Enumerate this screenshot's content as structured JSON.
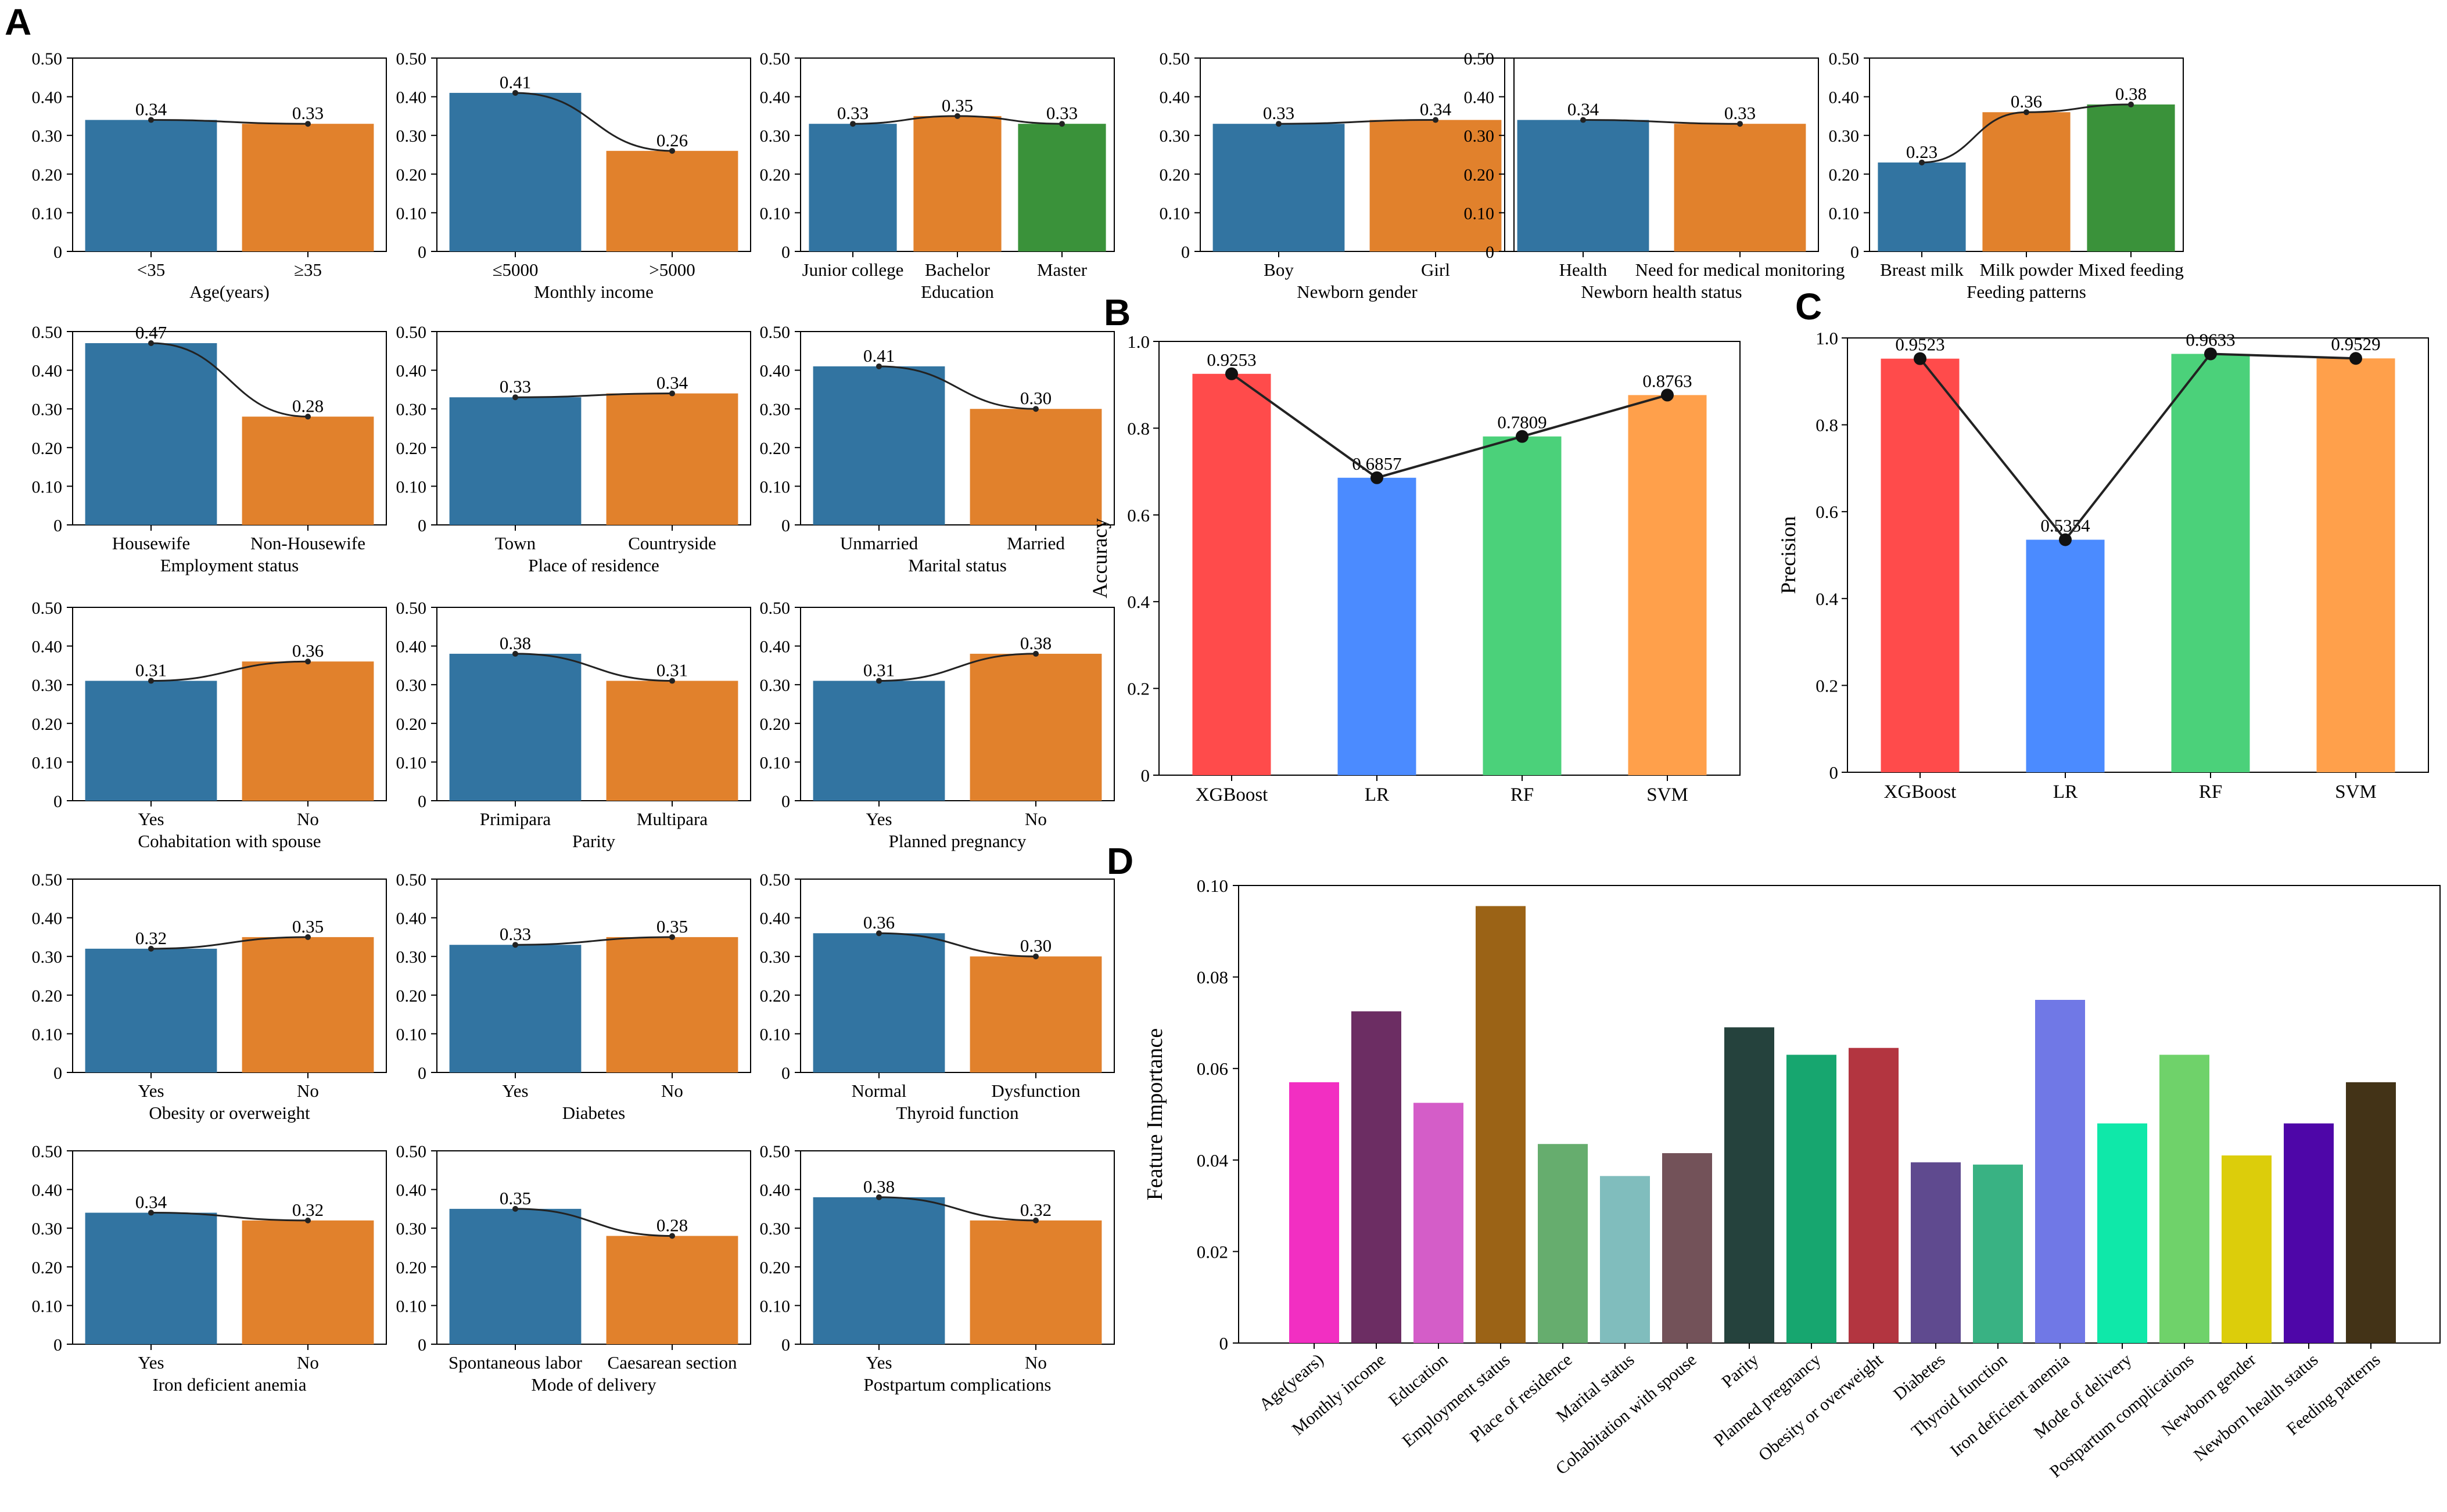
{
  "panels": {
    "A": "A",
    "B": "B",
    "C": "C",
    "D": "D"
  },
  "colors": {
    "blue": "#3274a1",
    "orange": "#e1812c",
    "green": "#3a923a",
    "line": "#222222"
  },
  "chart_data": [
    {
      "panel": "A",
      "type": "bar",
      "title": "",
      "xlabel": "Age(years)",
      "ylabel": "",
      "ylim": [
        0,
        0.5
      ],
      "yticks": [
        "0",
        "0.10",
        "0.20",
        "0.30",
        "0.40",
        "0.50"
      ],
      "categories": [
        "<35",
        "≥35"
      ],
      "values": [
        0.34,
        0.33
      ],
      "labels": [
        "0.34",
        "0.33"
      ]
    },
    {
      "panel": "A",
      "type": "bar",
      "title": "",
      "xlabel": "Monthly income",
      "ylabel": "",
      "ylim": [
        0,
        0.5
      ],
      "yticks": [
        "0",
        "0.10",
        "0.20",
        "0.30",
        "0.40",
        "0.50"
      ],
      "categories": [
        "≤5000",
        ">5000"
      ],
      "values": [
        0.41,
        0.26
      ],
      "labels": [
        "0.41",
        "0.26"
      ]
    },
    {
      "panel": "A",
      "type": "bar",
      "title": "",
      "xlabel": "Education",
      "ylabel": "",
      "ylim": [
        0,
        0.5
      ],
      "yticks": [
        "0",
        "0.10",
        "0.20",
        "0.30",
        "0.40",
        "0.50"
      ],
      "categories": [
        "Junior college",
        "Bachelor",
        "Master"
      ],
      "values": [
        0.33,
        0.35,
        0.33
      ],
      "labels": [
        "0.33",
        "0.35",
        "0.33"
      ]
    },
    {
      "panel": "A",
      "type": "bar",
      "title": "",
      "xlabel": "Newborn gender",
      "ylabel": "",
      "ylim": [
        0,
        0.5
      ],
      "yticks": [
        "0",
        "0.10",
        "0.20",
        "0.30",
        "0.40",
        "0.50"
      ],
      "categories": [
        "Boy",
        "Girl"
      ],
      "values": [
        0.33,
        0.34
      ],
      "labels": [
        "0.33",
        "0.34"
      ]
    },
    {
      "panel": "A",
      "type": "bar",
      "title": "",
      "xlabel": "Newborn health status",
      "ylabel": "",
      "ylim": [
        0,
        0.5
      ],
      "yticks": [
        "0",
        "0.10",
        "0.20",
        "0.30",
        "0.40",
        "0.50"
      ],
      "categories": [
        "Health",
        "Need for medical monitoring"
      ],
      "values": [
        0.34,
        0.33
      ],
      "labels": [
        "0.34",
        "0.33"
      ]
    },
    {
      "panel": "A",
      "type": "bar",
      "title": "",
      "xlabel": "Feeding patterns",
      "ylabel": "",
      "ylim": [
        0,
        0.5
      ],
      "yticks": [
        "0",
        "0.10",
        "0.20",
        "0.30",
        "0.40",
        "0.50"
      ],
      "categories": [
        "Breast milk",
        "Milk powder",
        "Mixed feeding"
      ],
      "values": [
        0.23,
        0.36,
        0.38
      ],
      "labels": [
        "0.23",
        "0.36",
        "0.38"
      ]
    },
    {
      "panel": "A",
      "type": "bar",
      "title": "",
      "xlabel": "Employment status",
      "ylabel": "",
      "ylim": [
        0,
        0.5
      ],
      "yticks": [
        "0",
        "0.10",
        "0.20",
        "0.30",
        "0.40",
        "0.50"
      ],
      "categories": [
        "Housewife",
        "Non-Housewife"
      ],
      "values": [
        0.47,
        0.28
      ],
      "labels": [
        "0.47",
        "0.28"
      ]
    },
    {
      "panel": "A",
      "type": "bar",
      "title": "",
      "xlabel": "Place of residence",
      "ylabel": "",
      "ylim": [
        0,
        0.5
      ],
      "yticks": [
        "0",
        "0.10",
        "0.20",
        "0.30",
        "0.40",
        "0.50"
      ],
      "categories": [
        "Town",
        "Countryside"
      ],
      "values": [
        0.33,
        0.34
      ],
      "labels": [
        "0.33",
        "0.34"
      ]
    },
    {
      "panel": "A",
      "type": "bar",
      "title": "",
      "xlabel": "Marital status",
      "ylabel": "",
      "ylim": [
        0,
        0.5
      ],
      "yticks": [
        "0",
        "0.10",
        "0.20",
        "0.30",
        "0.40",
        "0.50"
      ],
      "categories": [
        "Unmarried",
        "Married"
      ],
      "values": [
        0.41,
        0.3
      ],
      "labels": [
        "0.41",
        "0.30"
      ]
    },
    {
      "panel": "A",
      "type": "bar",
      "title": "",
      "xlabel": "Cohabitation with spouse",
      "ylabel": "",
      "ylim": [
        0,
        0.5
      ],
      "yticks": [
        "0",
        "0.10",
        "0.20",
        "0.30",
        "0.40",
        "0.50"
      ],
      "categories": [
        "Yes",
        "No"
      ],
      "values": [
        0.31,
        0.36
      ],
      "labels": [
        "0.31",
        "0.36"
      ]
    },
    {
      "panel": "A",
      "type": "bar",
      "title": "",
      "xlabel": "Parity",
      "ylabel": "",
      "ylim": [
        0,
        0.5
      ],
      "yticks": [
        "0",
        "0.10",
        "0.20",
        "0.30",
        "0.40",
        "0.50"
      ],
      "categories": [
        "Primipara",
        "Multipara"
      ],
      "values": [
        0.38,
        0.31
      ],
      "labels": [
        "0.38",
        "0.31"
      ]
    },
    {
      "panel": "A",
      "type": "bar",
      "title": "",
      "xlabel": "Planned pregnancy",
      "ylabel": "",
      "ylim": [
        0,
        0.5
      ],
      "yticks": [
        "0",
        "0.10",
        "0.20",
        "0.30",
        "0.40",
        "0.50"
      ],
      "categories": [
        "Yes",
        "No"
      ],
      "values": [
        0.31,
        0.38
      ],
      "labels": [
        "0.31",
        "0.38"
      ]
    },
    {
      "panel": "A",
      "type": "bar",
      "title": "",
      "xlabel": "Obesity or overweight",
      "ylabel": "",
      "ylim": [
        0,
        0.5
      ],
      "yticks": [
        "0",
        "0.10",
        "0.20",
        "0.30",
        "0.40",
        "0.50"
      ],
      "categories": [
        "Yes",
        "No"
      ],
      "values": [
        0.32,
        0.35
      ],
      "labels": [
        "0.32",
        "0.35"
      ]
    },
    {
      "panel": "A",
      "type": "bar",
      "title": "",
      "xlabel": "Diabetes",
      "ylabel": "",
      "ylim": [
        0,
        0.5
      ],
      "yticks": [
        "0",
        "0.10",
        "0.20",
        "0.30",
        "0.40",
        "0.50"
      ],
      "categories": [
        "Yes",
        "No"
      ],
      "values": [
        0.33,
        0.35
      ],
      "labels": [
        "0.33",
        "0.35"
      ]
    },
    {
      "panel": "A",
      "type": "bar",
      "title": "",
      "xlabel": "Thyroid function",
      "ylabel": "",
      "ylim": [
        0,
        0.5
      ],
      "yticks": [
        "0",
        "0.10",
        "0.20",
        "0.30",
        "0.40",
        "0.50"
      ],
      "categories": [
        "Normal",
        "Dysfunction"
      ],
      "values": [
        0.36,
        0.3
      ],
      "labels": [
        "0.36",
        "0.30"
      ]
    },
    {
      "panel": "A",
      "type": "bar",
      "title": "",
      "xlabel": "Iron deficient anemia",
      "ylabel": "",
      "ylim": [
        0,
        0.5
      ],
      "yticks": [
        "0",
        "0.10",
        "0.20",
        "0.30",
        "0.40",
        "0.50"
      ],
      "categories": [
        "Yes",
        "No"
      ],
      "values": [
        0.34,
        0.32
      ],
      "labels": [
        "0.34",
        "0.32"
      ]
    },
    {
      "panel": "A",
      "type": "bar",
      "title": "",
      "xlabel": "Mode of delivery",
      "ylabel": "",
      "ylim": [
        0,
        0.5
      ],
      "yticks": [
        "0",
        "0.10",
        "0.20",
        "0.30",
        "0.40",
        "0.50"
      ],
      "categories": [
        "Spontaneous labor",
        "Caesarean section"
      ],
      "values": [
        0.35,
        0.28
      ],
      "labels": [
        "0.35",
        "0.28"
      ]
    },
    {
      "panel": "A",
      "type": "bar",
      "title": "",
      "xlabel": "Postpartum complications",
      "ylabel": "",
      "ylim": [
        0,
        0.5
      ],
      "yticks": [
        "0",
        "0.10",
        "0.20",
        "0.30",
        "0.40",
        "0.50"
      ],
      "categories": [
        "Yes",
        "No"
      ],
      "values": [
        0.38,
        0.32
      ],
      "labels": [
        "0.38",
        "0.32"
      ]
    },
    {
      "panel": "B",
      "type": "bar",
      "title": "",
      "xlabel": "",
      "ylabel": "Accuracy",
      "ylim": [
        0,
        1.0
      ],
      "yticks": [
        "0",
        "0.2",
        "0.4",
        "0.6",
        "0.8",
        "1.0"
      ],
      "categories": [
        "XGBoost",
        "LR",
        "RF",
        "SVM"
      ],
      "values": [
        0.9253,
        0.6857,
        0.7809,
        0.8763
      ],
      "labels": [
        "0.9253",
        "0.6857",
        "0.7809",
        "0.8763"
      ],
      "colors": [
        "#ff4b4b",
        "#4b8bff",
        "#4bd17a",
        "#ffa04b"
      ]
    },
    {
      "panel": "C",
      "type": "bar",
      "title": "",
      "xlabel": "",
      "ylabel": "Precision",
      "ylim": [
        0,
        1.0
      ],
      "yticks": [
        "0",
        "0.2",
        "0.4",
        "0.6",
        "0.8",
        "1.0"
      ],
      "categories": [
        "XGBoost",
        "LR",
        "RF",
        "SVM"
      ],
      "values": [
        0.9523,
        0.5354,
        0.9633,
        0.9529
      ],
      "labels": [
        "0.9523",
        "0.5354",
        "0.9633",
        "0.9529"
      ],
      "colors": [
        "#ff4b4b",
        "#4b8bff",
        "#4bd17a",
        "#ffa04b"
      ]
    },
    {
      "panel": "D",
      "type": "bar",
      "title": "",
      "xlabel": "",
      "ylabel": "Feature Importance",
      "ylim": [
        0,
        0.1
      ],
      "yticks": [
        "0",
        "0.02",
        "0.04",
        "0.06",
        "0.08",
        "0.10"
      ],
      "categories": [
        "Age(years)",
        "Monthly income",
        "Education",
        "Employment status",
        "Place of residence",
        "Marital status",
        "Cohabitation with spouse",
        "Parity",
        "Planned pregnancy",
        "Obesity or overweight",
        "Diabetes",
        "Thyroid function",
        "Iron deficient anemia",
        "Mode of delivery",
        "Postpartum complications",
        "Newborn gender",
        "Newborn health status",
        "Feeding patterns"
      ],
      "values": [
        0.057,
        0.0725,
        0.0525,
        0.0955,
        0.0435,
        0.0365,
        0.0415,
        0.069,
        0.063,
        0.0645,
        0.0395,
        0.039,
        0.075,
        0.048,
        0.063,
        0.041,
        0.048,
        0.057
      ],
      "colors": [
        "#f22fc2",
        "#6c2d63",
        "#d45dc8",
        "#9b6316",
        "#66ad6e",
        "#80bdbd",
        "#735259",
        "#25423d",
        "#17a66f",
        "#b33540",
        "#5f4a8f",
        "#39b283",
        "#7078e6",
        "#0fe8a9",
        "#6fd26a",
        "#dccd0b",
        "#4e06a8",
        "#433317"
      ]
    }
  ]
}
